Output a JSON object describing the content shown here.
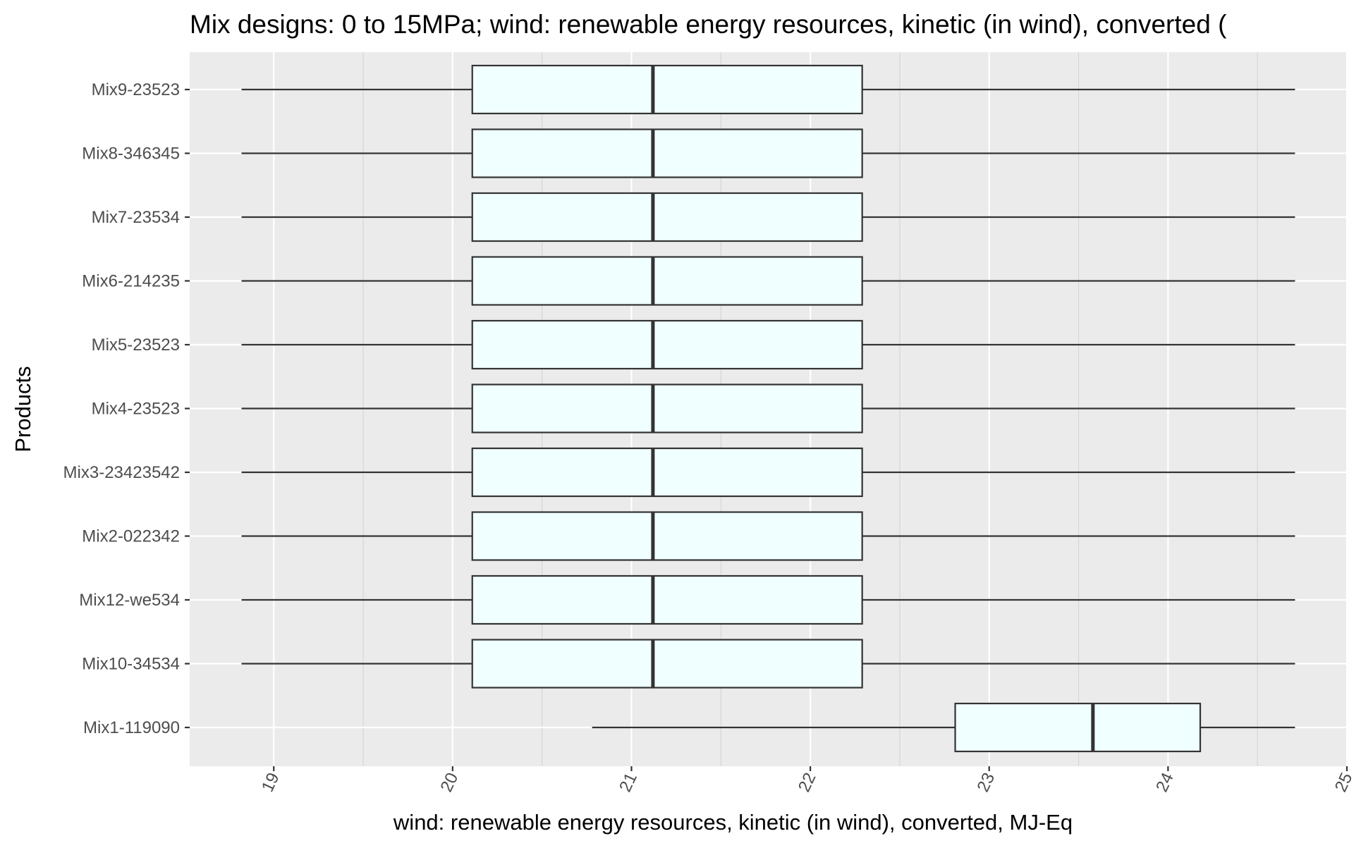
{
  "chart_data": {
    "type": "boxplot",
    "title": "Mix designs: 0 to 15MPa; wind: renewable energy resources, kinetic (in wind), converted (",
    "xlabel": "wind: renewable energy resources, kinetic (in wind), converted, MJ-Eq",
    "ylabel": "Products",
    "xlim": [
      18.53,
      25.0
    ],
    "x_ticks": [
      "19",
      "20",
      "21",
      "22",
      "23",
      "24",
      "25"
    ],
    "orientation": "horizontal",
    "grid": true,
    "colors": {
      "panel": "#ebebeb",
      "grid": "#ffffff",
      "box_fill": "#f0ffff",
      "box_stroke": "#333333"
    },
    "categories": [
      "Mix9-23523",
      "Mix8-346345",
      "Mix7-23534",
      "Mix6-214235",
      "Mix5-23523",
      "Mix4-23523",
      "Mix3-23423542",
      "Mix2-022342",
      "Mix12-we534",
      "Mix10-34534",
      "Mix1-119090"
    ],
    "boxes": [
      {
        "category": "Mix9-23523",
        "min": 18.82,
        "q1": 20.11,
        "median": 21.12,
        "q3": 22.29,
        "max": 24.71
      },
      {
        "category": "Mix8-346345",
        "min": 18.82,
        "q1": 20.11,
        "median": 21.12,
        "q3": 22.29,
        "max": 24.71
      },
      {
        "category": "Mix7-23534",
        "min": 18.82,
        "q1": 20.11,
        "median": 21.12,
        "q3": 22.29,
        "max": 24.71
      },
      {
        "category": "Mix6-214235",
        "min": 18.82,
        "q1": 20.11,
        "median": 21.12,
        "q3": 22.29,
        "max": 24.71
      },
      {
        "category": "Mix5-23523",
        "min": 18.82,
        "q1": 20.11,
        "median": 21.12,
        "q3": 22.29,
        "max": 24.71
      },
      {
        "category": "Mix4-23523",
        "min": 18.82,
        "q1": 20.11,
        "median": 21.12,
        "q3": 22.29,
        "max": 24.71
      },
      {
        "category": "Mix3-23423542",
        "min": 18.82,
        "q1": 20.11,
        "median": 21.12,
        "q3": 22.29,
        "max": 24.71
      },
      {
        "category": "Mix2-022342",
        "min": 18.82,
        "q1": 20.11,
        "median": 21.12,
        "q3": 22.29,
        "max": 24.71
      },
      {
        "category": "Mix12-we534",
        "min": 18.82,
        "q1": 20.11,
        "median": 21.12,
        "q3": 22.29,
        "max": 24.71
      },
      {
        "category": "Mix10-34534",
        "min": 18.82,
        "q1": 20.11,
        "median": 21.12,
        "q3": 22.29,
        "max": 24.71
      },
      {
        "category": "Mix1-119090",
        "min": 20.78,
        "q1": 22.81,
        "median": 23.58,
        "q3": 24.18,
        "max": 24.71
      }
    ]
  }
}
